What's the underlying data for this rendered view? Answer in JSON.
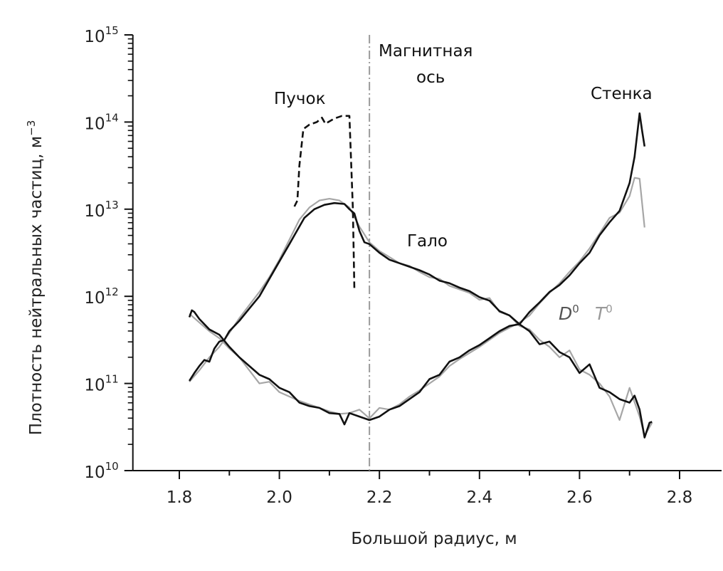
{
  "chart_data": {
    "type": "line",
    "title": "",
    "xlabel": "Большой радиус, м",
    "ylabel": "Плотность нейтральных частиц, м",
    "ylabel_sup": "−3",
    "yscale": "log",
    "xlim": [
      1.7,
      2.96
    ],
    "ylim": [
      10000000000.0,
      1000000000000000.0
    ],
    "grid": false,
    "x_ticks": [
      "1.8",
      "2.0",
      "2.2",
      "2.4",
      "2.6",
      "2.8"
    ],
    "x_tick_values": [
      1.8,
      2.0,
      2.2,
      2.4,
      2.6,
      2.8
    ],
    "y_ticks": [
      {
        "base": "10",
        "exp": "10",
        "value": 10
      },
      {
        "base": "10",
        "exp": "11",
        "value": 11
      },
      {
        "base": "10",
        "exp": "12",
        "value": 12
      },
      {
        "base": "10",
        "exp": "13",
        "value": 13
      },
      {
        "base": "10",
        "exp": "14",
        "value": 14
      },
      {
        "base": "10",
        "exp": "15",
        "value": 15
      }
    ],
    "magnetic_axis_x": 2.18,
    "annotations": {
      "magnetic_axis_1": "Магнитная",
      "magnetic_axis_2": "ось",
      "beam": "Пучок",
      "wall": "Стенка",
      "halo": "Гало",
      "legend_d": "D",
      "legend_d_sup": "0",
      "legend_t": "T",
      "legend_t_sup": "0"
    },
    "colors": {
      "D0": "#111111",
      "T0": "#a6a6a6",
      "axis": "#111111",
      "magnetic_axis": "#9a9a9a"
    },
    "series_note": "y values are log10 of density (m^-3)",
    "series": [
      {
        "name": "Halo D0",
        "style": "solid",
        "color_key": "D0",
        "x": [
          1.82,
          1.83,
          1.84,
          1.85,
          1.86,
          1.87,
          1.88,
          1.89,
          1.9,
          1.92,
          1.94,
          1.96,
          1.98,
          2.0,
          2.02,
          2.03,
          2.05,
          2.07,
          2.09,
          2.11,
          2.13,
          2.14,
          2.15,
          2.16,
          2.17,
          2.18,
          2.2,
          2.22,
          2.24,
          2.26,
          2.28,
          2.3,
          2.32,
          2.34,
          2.36,
          2.38,
          2.4,
          2.42,
          2.44,
          2.46,
          2.48,
          2.5,
          2.52,
          2.54,
          2.56,
          2.58,
          2.6,
          2.62,
          2.64,
          2.66,
          2.68,
          2.7,
          2.71,
          2.72,
          2.73,
          2.74,
          2.745
        ],
        "y": [
          11.03,
          11.12,
          11.2,
          11.27,
          11.25,
          11.4,
          11.48,
          11.5,
          11.6,
          11.72,
          11.86,
          12.0,
          12.2,
          12.4,
          12.6,
          12.7,
          12.9,
          13.0,
          13.05,
          13.07,
          13.06,
          13.0,
          12.95,
          12.75,
          12.62,
          12.6,
          12.5,
          12.42,
          12.38,
          12.34,
          12.3,
          12.25,
          12.18,
          12.15,
          12.1,
          12.06,
          11.99,
          11.95,
          11.83,
          11.78,
          11.68,
          11.6,
          11.45,
          11.48,
          11.36,
          11.3,
          11.12,
          11.22,
          10.95,
          10.9,
          10.82,
          10.78,
          10.86,
          10.7,
          10.38,
          10.55,
          10.56
        ]
      },
      {
        "name": "Halo T0",
        "style": "solid",
        "color_key": "T0",
        "x": [
          1.82,
          1.84,
          1.86,
          1.88,
          1.9,
          1.92,
          1.94,
          1.96,
          1.98,
          2.0,
          2.02,
          2.04,
          2.06,
          2.08,
          2.1,
          2.12,
          2.14,
          2.16,
          2.18,
          2.2,
          2.22,
          2.24,
          2.26,
          2.28,
          2.3,
          2.32,
          2.34,
          2.36,
          2.38,
          2.4,
          2.42,
          2.44,
          2.46,
          2.48,
          2.5,
          2.52,
          2.54,
          2.56,
          2.58,
          2.6,
          2.62,
          2.64,
          2.66,
          2.68,
          2.7,
          2.72,
          2.73,
          2.745
        ],
        "y": [
          11.02,
          11.15,
          11.3,
          11.42,
          11.58,
          11.75,
          11.9,
          12.05,
          12.22,
          12.42,
          12.65,
          12.88,
          13.02,
          13.1,
          13.12,
          13.1,
          13.02,
          12.8,
          12.62,
          12.52,
          12.45,
          12.38,
          12.35,
          12.28,
          12.22,
          12.2,
          12.12,
          12.08,
          12.04,
          11.96,
          11.98,
          11.82,
          11.78,
          11.66,
          11.62,
          11.5,
          11.42,
          11.3,
          11.38,
          11.16,
          11.1,
          11.0,
          10.85,
          10.58,
          10.95,
          10.62,
          10.4,
          10.55
        ]
      },
      {
        "name": "Wall D0",
        "style": "solid",
        "color_key": "D0",
        "x": [
          1.82,
          1.825,
          1.83,
          1.84,
          1.86,
          1.88,
          1.9,
          1.92,
          1.94,
          1.96,
          1.98,
          2.0,
          2.02,
          2.04,
          2.06,
          2.08,
          2.1,
          2.12,
          2.13,
          2.14,
          2.16,
          2.18,
          2.2,
          2.22,
          2.24,
          2.26,
          2.28,
          2.3,
          2.32,
          2.34,
          2.36,
          2.38,
          2.4,
          2.42,
          2.44,
          2.46,
          2.48,
          2.5,
          2.52,
          2.54,
          2.56,
          2.58,
          2.6,
          2.62,
          2.64,
          2.66,
          2.68,
          2.7,
          2.71,
          2.72,
          2.725,
          2.73
        ],
        "y": [
          11.76,
          11.84,
          11.82,
          11.74,
          11.62,
          11.56,
          11.42,
          11.3,
          11.2,
          11.1,
          11.05,
          10.95,
          10.9,
          10.78,
          10.74,
          10.72,
          10.66,
          10.65,
          10.53,
          10.66,
          10.62,
          10.58,
          10.62,
          10.7,
          10.74,
          10.82,
          10.9,
          11.05,
          11.1,
          11.25,
          11.3,
          11.38,
          11.44,
          11.52,
          11.6,
          11.66,
          11.68,
          11.82,
          11.93,
          12.05,
          12.13,
          12.24,
          12.38,
          12.5,
          12.7,
          12.85,
          12.98,
          13.3,
          13.6,
          14.1,
          13.9,
          13.72
        ]
      },
      {
        "name": "Wall T0",
        "style": "solid",
        "color_key": "T0",
        "x": [
          1.82,
          1.84,
          1.86,
          1.88,
          1.9,
          1.92,
          1.94,
          1.96,
          1.98,
          2.0,
          2.02,
          2.04,
          2.06,
          2.08,
          2.1,
          2.12,
          2.14,
          2.16,
          2.18,
          2.2,
          2.22,
          2.24,
          2.26,
          2.28,
          2.3,
          2.32,
          2.34,
          2.36,
          2.38,
          2.4,
          2.42,
          2.44,
          2.46,
          2.48,
          2.5,
          2.52,
          2.54,
          2.56,
          2.58,
          2.6,
          2.62,
          2.64,
          2.66,
          2.68,
          2.7,
          2.71,
          2.72,
          2.73
        ],
        "y": [
          11.8,
          11.7,
          11.6,
          11.52,
          11.4,
          11.3,
          11.15,
          11.0,
          11.02,
          10.9,
          10.85,
          10.8,
          10.76,
          10.72,
          10.68,
          10.65,
          10.66,
          10.7,
          10.6,
          10.72,
          10.7,
          10.76,
          10.85,
          10.92,
          11.0,
          11.08,
          11.2,
          11.28,
          11.35,
          11.42,
          11.5,
          11.58,
          11.64,
          11.7,
          11.78,
          11.92,
          12.04,
          12.15,
          12.28,
          12.4,
          12.55,
          12.72,
          12.9,
          12.96,
          13.15,
          13.36,
          13.35,
          12.79
        ]
      },
      {
        "name": "Beam",
        "style": "dashed",
        "color_key": "D0",
        "x": [
          2.03,
          2.036,
          2.04,
          2.048,
          2.06,
          2.075,
          2.085,
          2.092,
          2.11,
          2.125,
          2.14,
          2.147,
          2.15
        ],
        "y": [
          13.03,
          13.1,
          13.5,
          13.92,
          13.97,
          14.0,
          14.05,
          13.98,
          14.04,
          14.07,
          14.07,
          13.0,
          12.07
        ]
      }
    ]
  }
}
